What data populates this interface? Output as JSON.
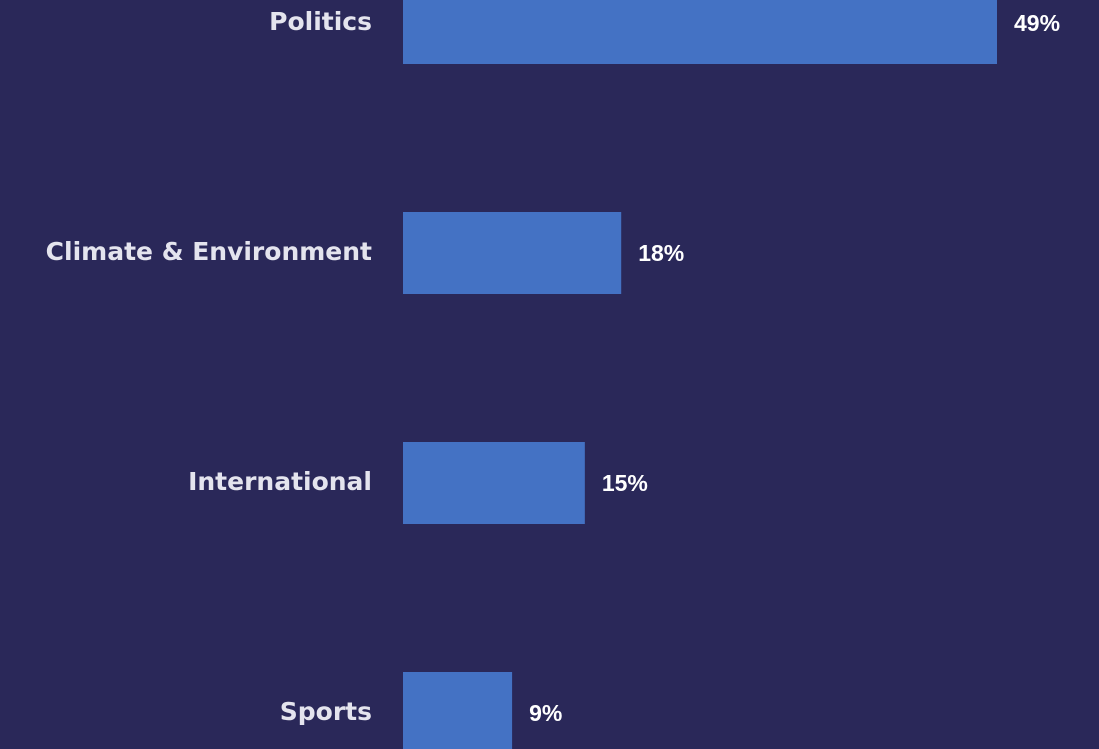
{
  "chart_data": {
    "type": "hbar",
    "categories": [
      "Politics",
      "Climate & Environment",
      "International",
      "Sports"
    ],
    "values": [
      49,
      18,
      15,
      9
    ],
    "value_labels": [
      "49%",
      "18%",
      "15%",
      "9%"
    ],
    "color": "#4472c4"
  }
}
